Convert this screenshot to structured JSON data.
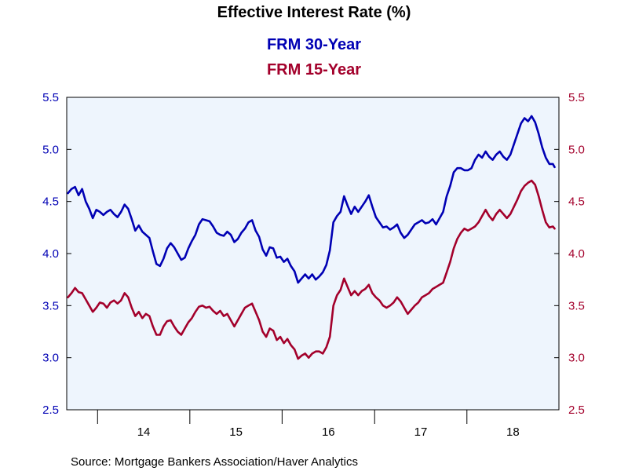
{
  "chart_data": {
    "type": "line",
    "title": "Effective Interest Rate (%)",
    "source": "Source:  Mortgage Bankers Association/Haver Analytics",
    "x_range": [
      "2013-09-01",
      "2018-12-31"
    ],
    "x_tick_labels": [
      "14",
      "15",
      "16",
      "17",
      "18"
    ],
    "y_range": [
      2.5,
      5.5
    ],
    "y_ticks_left": [
      "2.5",
      "3.0",
      "3.5",
      "4.0",
      "4.5",
      "5.0",
      "5.5"
    ],
    "y_ticks_right": [
      "2.5",
      "3.0",
      "3.5",
      "4.0",
      "4.5",
      "5.0",
      "5.5"
    ],
    "grid": false,
    "plot_background": "#eef5fd",
    "series": [
      {
        "name": "FRM 30-Year",
        "color": "#0000b4",
        "points": [
          [
            "2013-09-06",
            4.58
          ],
          [
            "2013-09-20",
            4.62
          ],
          [
            "2013-10-04",
            4.64
          ],
          [
            "2013-10-18",
            4.56
          ],
          [
            "2013-11-01",
            4.62
          ],
          [
            "2013-11-15",
            4.5
          ],
          [
            "2013-11-29",
            4.43
          ],
          [
            "2013-12-13",
            4.34
          ],
          [
            "2013-12-27",
            4.42
          ],
          [
            "2014-01-10",
            4.4
          ],
          [
            "2014-01-24",
            4.37
          ],
          [
            "2014-02-07",
            4.4
          ],
          [
            "2014-02-21",
            4.42
          ],
          [
            "2014-03-07",
            4.38
          ],
          [
            "2014-03-21",
            4.35
          ],
          [
            "2014-04-04",
            4.4
          ],
          [
            "2014-04-18",
            4.47
          ],
          [
            "2014-05-02",
            4.43
          ],
          [
            "2014-05-16",
            4.33
          ],
          [
            "2014-05-30",
            4.22
          ],
          [
            "2014-06-13",
            4.27
          ],
          [
            "2014-06-27",
            4.21
          ],
          [
            "2014-07-11",
            4.18
          ],
          [
            "2014-07-25",
            4.15
          ],
          [
            "2014-08-08",
            4.02
          ],
          [
            "2014-08-22",
            3.9
          ],
          [
            "2014-09-05",
            3.88
          ],
          [
            "2014-09-19",
            3.95
          ],
          [
            "2014-10-03",
            4.05
          ],
          [
            "2014-10-17",
            4.1
          ],
          [
            "2014-10-31",
            4.06
          ],
          [
            "2014-11-14",
            4.0
          ],
          [
            "2014-11-28",
            3.94
          ],
          [
            "2014-12-12",
            3.96
          ],
          [
            "2014-12-26",
            4.05
          ],
          [
            "2015-01-09",
            4.12
          ],
          [
            "2015-01-23",
            4.18
          ],
          [
            "2015-02-06",
            4.28
          ],
          [
            "2015-02-20",
            4.33
          ],
          [
            "2015-03-06",
            4.32
          ],
          [
            "2015-03-20",
            4.31
          ],
          [
            "2015-04-03",
            4.26
          ],
          [
            "2015-04-17",
            4.2
          ],
          [
            "2015-05-01",
            4.18
          ],
          [
            "2015-05-15",
            4.17
          ],
          [
            "2015-05-29",
            4.21
          ],
          [
            "2015-06-12",
            4.18
          ],
          [
            "2015-06-26",
            4.11
          ],
          [
            "2015-07-10",
            4.14
          ],
          [
            "2015-07-24",
            4.2
          ],
          [
            "2015-08-07",
            4.24
          ],
          [
            "2015-08-21",
            4.3
          ],
          [
            "2015-09-04",
            4.32
          ],
          [
            "2015-09-18",
            4.22
          ],
          [
            "2015-10-02",
            4.16
          ],
          [
            "2015-10-16",
            4.04
          ],
          [
            "2015-10-30",
            3.98
          ],
          [
            "2015-11-13",
            4.06
          ],
          [
            "2015-11-27",
            4.05
          ],
          [
            "2015-12-11",
            3.96
          ],
          [
            "2015-12-25",
            3.97
          ],
          [
            "2016-01-08",
            3.92
          ],
          [
            "2016-01-22",
            3.95
          ],
          [
            "2016-02-05",
            3.88
          ],
          [
            "2016-02-19",
            3.83
          ],
          [
            "2016-03-04",
            3.72
          ],
          [
            "2016-03-18",
            3.76
          ],
          [
            "2016-04-01",
            3.8
          ],
          [
            "2016-04-15",
            3.76
          ],
          [
            "2016-04-29",
            3.8
          ],
          [
            "2016-05-13",
            3.75
          ],
          [
            "2016-05-27",
            3.78
          ],
          [
            "2016-06-10",
            3.82
          ],
          [
            "2016-06-24",
            3.89
          ],
          [
            "2016-07-08",
            4.03
          ],
          [
            "2016-07-22",
            4.3
          ],
          [
            "2016-08-05",
            4.36
          ],
          [
            "2016-08-19",
            4.4
          ],
          [
            "2016-09-02",
            4.55
          ],
          [
            "2016-09-16",
            4.46
          ],
          [
            "2016-09-30",
            4.38
          ],
          [
            "2016-10-14",
            4.45
          ],
          [
            "2016-10-28",
            4.4
          ],
          [
            "2016-11-11",
            4.45
          ],
          [
            "2016-11-25",
            4.5
          ],
          [
            "2016-12-09",
            4.56
          ],
          [
            "2016-12-23",
            4.45
          ],
          [
            "2017-01-06",
            4.35
          ],
          [
            "2017-01-20",
            4.3
          ],
          [
            "2017-02-03",
            4.25
          ],
          [
            "2017-02-17",
            4.26
          ],
          [
            "2017-03-03",
            4.23
          ],
          [
            "2017-03-17",
            4.25
          ],
          [
            "2017-03-31",
            4.28
          ],
          [
            "2017-04-14",
            4.2
          ],
          [
            "2017-04-28",
            4.15
          ],
          [
            "2017-05-12",
            4.18
          ],
          [
            "2017-05-26",
            4.23
          ],
          [
            "2017-06-09",
            4.28
          ],
          [
            "2017-06-23",
            4.3
          ],
          [
            "2017-07-07",
            4.32
          ],
          [
            "2017-07-21",
            4.29
          ],
          [
            "2017-08-04",
            4.3
          ],
          [
            "2017-08-18",
            4.33
          ],
          [
            "2017-09-01",
            4.28
          ],
          [
            "2017-09-15",
            4.34
          ],
          [
            "2017-09-29",
            4.4
          ],
          [
            "2017-10-13",
            4.55
          ],
          [
            "2017-10-27",
            4.65
          ],
          [
            "2017-11-10",
            4.78
          ],
          [
            "2017-11-24",
            4.82
          ],
          [
            "2017-12-08",
            4.82
          ],
          [
            "2017-12-22",
            4.8
          ],
          [
            "2018-01-05",
            4.8
          ],
          [
            "2018-01-19",
            4.82
          ],
          [
            "2018-02-02",
            4.9
          ],
          [
            "2018-02-16",
            4.95
          ],
          [
            "2018-03-02",
            4.92
          ],
          [
            "2018-03-16",
            4.98
          ],
          [
            "2018-03-30",
            4.93
          ],
          [
            "2018-04-13",
            4.9
          ],
          [
            "2018-04-27",
            4.95
          ],
          [
            "2018-05-11",
            4.98
          ],
          [
            "2018-05-25",
            4.93
          ],
          [
            "2018-06-08",
            4.9
          ],
          [
            "2018-06-22",
            4.95
          ],
          [
            "2018-07-06",
            5.05
          ],
          [
            "2018-07-20",
            5.15
          ],
          [
            "2018-08-03",
            5.25
          ],
          [
            "2018-08-17",
            5.3
          ],
          [
            "2018-08-31",
            5.27
          ],
          [
            "2018-09-14",
            5.32
          ],
          [
            "2018-09-28",
            5.26
          ],
          [
            "2018-10-12",
            5.15
          ],
          [
            "2018-10-26",
            5.02
          ],
          [
            "2018-11-09",
            4.92
          ],
          [
            "2018-11-23",
            4.86
          ],
          [
            "2018-12-07",
            4.86
          ],
          [
            "2018-12-14",
            4.83
          ]
        ]
      },
      {
        "name": "FRM 15-Year",
        "color": "#a3002b",
        "points": [
          [
            "2013-09-06",
            3.58
          ],
          [
            "2013-09-20",
            3.62
          ],
          [
            "2013-10-04",
            3.67
          ],
          [
            "2013-10-18",
            3.63
          ],
          [
            "2013-11-01",
            3.62
          ],
          [
            "2013-11-15",
            3.56
          ],
          [
            "2013-11-29",
            3.5
          ],
          [
            "2013-12-13",
            3.44
          ],
          [
            "2013-12-27",
            3.48
          ],
          [
            "2014-01-10",
            3.53
          ],
          [
            "2014-01-24",
            3.52
          ],
          [
            "2014-02-07",
            3.48
          ],
          [
            "2014-02-21",
            3.53
          ],
          [
            "2014-03-07",
            3.55
          ],
          [
            "2014-03-21",
            3.52
          ],
          [
            "2014-04-04",
            3.55
          ],
          [
            "2014-04-18",
            3.62
          ],
          [
            "2014-05-02",
            3.58
          ],
          [
            "2014-05-16",
            3.48
          ],
          [
            "2014-05-30",
            3.4
          ],
          [
            "2014-06-13",
            3.44
          ],
          [
            "2014-06-27",
            3.38
          ],
          [
            "2014-07-11",
            3.42
          ],
          [
            "2014-07-25",
            3.4
          ],
          [
            "2014-08-08",
            3.3
          ],
          [
            "2014-08-22",
            3.22
          ],
          [
            "2014-09-05",
            3.22
          ],
          [
            "2014-09-19",
            3.3
          ],
          [
            "2014-10-03",
            3.35
          ],
          [
            "2014-10-17",
            3.36
          ],
          [
            "2014-10-31",
            3.3
          ],
          [
            "2014-11-14",
            3.25
          ],
          [
            "2014-11-28",
            3.22
          ],
          [
            "2014-12-12",
            3.28
          ],
          [
            "2014-12-26",
            3.34
          ],
          [
            "2015-01-09",
            3.38
          ],
          [
            "2015-01-23",
            3.44
          ],
          [
            "2015-02-06",
            3.49
          ],
          [
            "2015-02-20",
            3.5
          ],
          [
            "2015-03-06",
            3.48
          ],
          [
            "2015-03-20",
            3.49
          ],
          [
            "2015-04-03",
            3.45
          ],
          [
            "2015-04-17",
            3.42
          ],
          [
            "2015-05-01",
            3.45
          ],
          [
            "2015-05-15",
            3.4
          ],
          [
            "2015-05-29",
            3.42
          ],
          [
            "2015-06-12",
            3.36
          ],
          [
            "2015-06-26",
            3.3
          ],
          [
            "2015-07-10",
            3.36
          ],
          [
            "2015-07-24",
            3.42
          ],
          [
            "2015-08-07",
            3.48
          ],
          [
            "2015-08-21",
            3.5
          ],
          [
            "2015-09-04",
            3.52
          ],
          [
            "2015-09-18",
            3.44
          ],
          [
            "2015-10-02",
            3.36
          ],
          [
            "2015-10-16",
            3.25
          ],
          [
            "2015-10-30",
            3.2
          ],
          [
            "2015-11-13",
            3.28
          ],
          [
            "2015-11-27",
            3.26
          ],
          [
            "2015-12-11",
            3.17
          ],
          [
            "2015-12-25",
            3.2
          ],
          [
            "2016-01-08",
            3.14
          ],
          [
            "2016-01-22",
            3.18
          ],
          [
            "2016-02-05",
            3.12
          ],
          [
            "2016-02-19",
            3.08
          ],
          [
            "2016-03-04",
            2.99
          ],
          [
            "2016-03-18",
            3.02
          ],
          [
            "2016-04-01",
            3.04
          ],
          [
            "2016-04-15",
            3.0
          ],
          [
            "2016-04-29",
            3.04
          ],
          [
            "2016-05-13",
            3.06
          ],
          [
            "2016-05-27",
            3.06
          ],
          [
            "2016-06-10",
            3.04
          ],
          [
            "2016-06-24",
            3.1
          ],
          [
            "2016-07-08",
            3.2
          ],
          [
            "2016-07-22",
            3.5
          ],
          [
            "2016-08-05",
            3.6
          ],
          [
            "2016-08-19",
            3.65
          ],
          [
            "2016-09-02",
            3.76
          ],
          [
            "2016-09-16",
            3.68
          ],
          [
            "2016-09-30",
            3.6
          ],
          [
            "2016-10-14",
            3.64
          ],
          [
            "2016-10-28",
            3.6
          ],
          [
            "2016-11-11",
            3.64
          ],
          [
            "2016-11-25",
            3.66
          ],
          [
            "2016-12-09",
            3.7
          ],
          [
            "2016-12-23",
            3.62
          ],
          [
            "2017-01-06",
            3.58
          ],
          [
            "2017-01-20",
            3.55
          ],
          [
            "2017-02-03",
            3.5
          ],
          [
            "2017-02-17",
            3.48
          ],
          [
            "2017-03-03",
            3.5
          ],
          [
            "2017-03-17",
            3.53
          ],
          [
            "2017-03-31",
            3.58
          ],
          [
            "2017-04-14",
            3.54
          ],
          [
            "2017-04-28",
            3.48
          ],
          [
            "2017-05-12",
            3.42
          ],
          [
            "2017-05-26",
            3.46
          ],
          [
            "2017-06-09",
            3.5
          ],
          [
            "2017-06-23",
            3.53
          ],
          [
            "2017-07-07",
            3.58
          ],
          [
            "2017-07-21",
            3.6
          ],
          [
            "2017-08-04",
            3.62
          ],
          [
            "2017-08-18",
            3.66
          ],
          [
            "2017-09-01",
            3.68
          ],
          [
            "2017-09-15",
            3.7
          ],
          [
            "2017-09-29",
            3.72
          ],
          [
            "2017-10-13",
            3.82
          ],
          [
            "2017-10-27",
            3.92
          ],
          [
            "2017-11-10",
            4.05
          ],
          [
            "2017-11-24",
            4.14
          ],
          [
            "2017-12-08",
            4.2
          ],
          [
            "2017-12-22",
            4.24
          ],
          [
            "2018-01-05",
            4.22
          ],
          [
            "2018-01-19",
            4.24
          ],
          [
            "2018-02-02",
            4.26
          ],
          [
            "2018-02-16",
            4.3
          ],
          [
            "2018-03-02",
            4.36
          ],
          [
            "2018-03-16",
            4.42
          ],
          [
            "2018-03-30",
            4.36
          ],
          [
            "2018-04-13",
            4.32
          ],
          [
            "2018-04-27",
            4.38
          ],
          [
            "2018-05-11",
            4.42
          ],
          [
            "2018-05-25",
            4.38
          ],
          [
            "2018-06-08",
            4.34
          ],
          [
            "2018-06-22",
            4.38
          ],
          [
            "2018-07-06",
            4.45
          ],
          [
            "2018-07-20",
            4.52
          ],
          [
            "2018-08-03",
            4.6
          ],
          [
            "2018-08-17",
            4.65
          ],
          [
            "2018-08-31",
            4.68
          ],
          [
            "2018-09-14",
            4.7
          ],
          [
            "2018-09-28",
            4.66
          ],
          [
            "2018-10-12",
            4.55
          ],
          [
            "2018-10-26",
            4.42
          ],
          [
            "2018-11-09",
            4.3
          ],
          [
            "2018-11-23",
            4.25
          ],
          [
            "2018-12-07",
            4.26
          ],
          [
            "2018-12-14",
            4.24
          ]
        ]
      }
    ]
  }
}
